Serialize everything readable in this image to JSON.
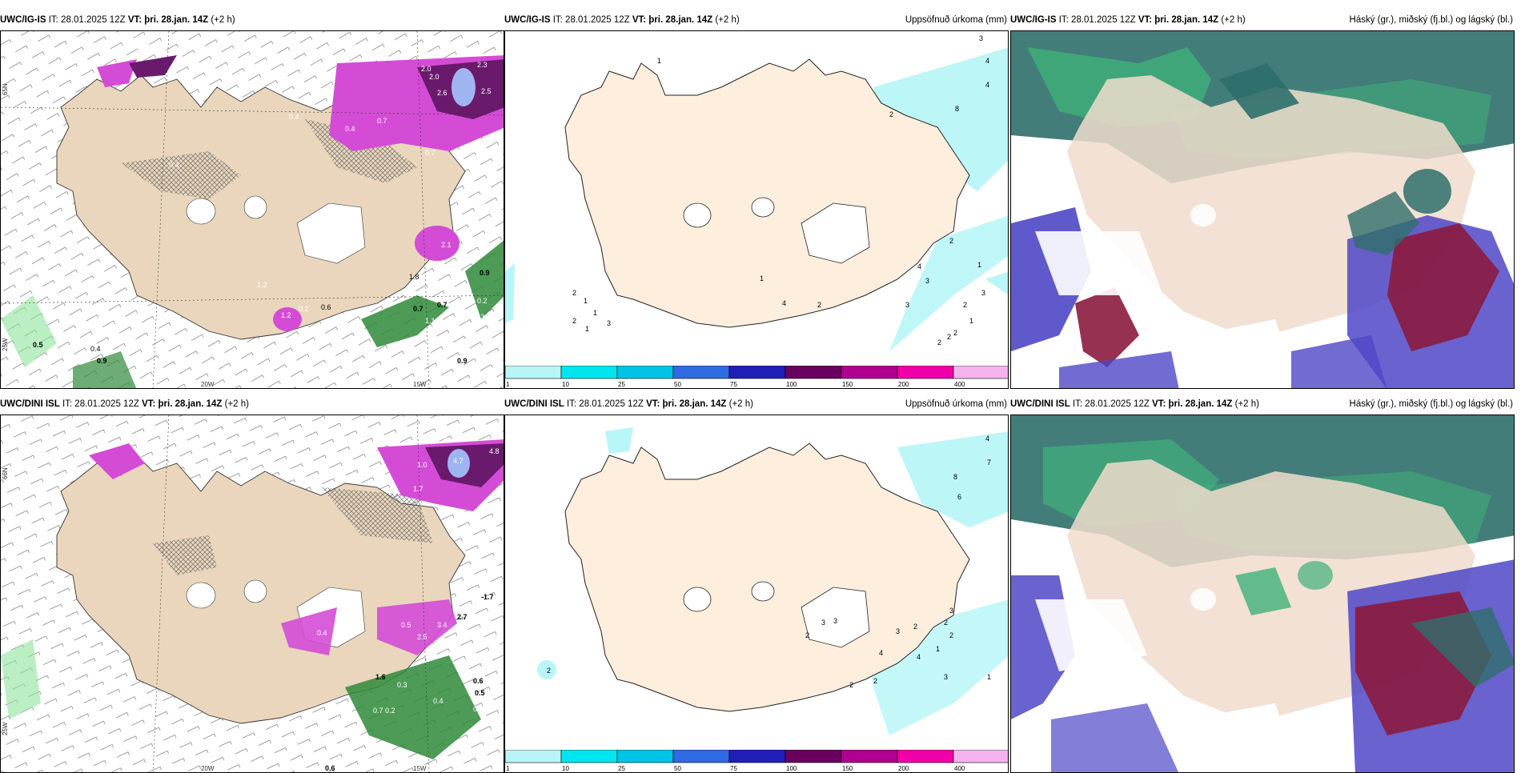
{
  "panels": [
    {
      "id": "top-left",
      "model": "UWC/IG-IS",
      "it_label": "IT:",
      "it_value": "28.01.2025 12Z",
      "vt_label": "VT:",
      "vt_value": "þri. 28.jan. 14Z",
      "offset": "(+2 h)",
      "right_title": "",
      "values": [
        "0.3",
        "0.3",
        "0.4",
        "0.4",
        "0.7",
        "2.0",
        "2.0",
        "2.3",
        "2.6",
        "2.5",
        "0.7",
        "0.4",
        "2.1",
        "1.8",
        "0.9",
        "0.7",
        "0.7",
        "0.2",
        "1.3",
        "1.1",
        "2.4",
        "0.5",
        "0.4",
        "0.9",
        "0.9",
        "1.2",
        "0.6",
        "0.2",
        "1.2"
      ],
      "axes": {
        "lon_left": "20W",
        "lon_right": "15W",
        "lat_top": "65N",
        "lat_bottom": "25W"
      }
    },
    {
      "id": "top-middle",
      "model": "UWC/IG-IS",
      "it_label": "IT:",
      "it_value": "28.01.2025 12Z",
      "vt_label": "VT:",
      "vt_value": "þri. 28.jan. 14Z",
      "offset": "(+2 h)",
      "right_title": "Uppsöfnuð úrkoma (mm)",
      "values": [
        "1",
        "3",
        "4",
        "4",
        "8",
        "2",
        "2",
        "4",
        "3",
        "1",
        "2",
        "3",
        "3",
        "1",
        "1",
        "2",
        "4",
        "2",
        "2",
        "1",
        "1",
        "1",
        "3",
        "1",
        "2",
        "2"
      ]
    },
    {
      "id": "top-right",
      "model": "UWC/IG-IS",
      "it_label": "IT:",
      "it_value": "28.01.2025 12Z",
      "vt_label": "VT:",
      "vt_value": "þri. 28.jan. 14Z",
      "offset": "(+2 h)",
      "right_title": "Háský (gr.), miðský (fj.bl.) og lágský (bl.)"
    },
    {
      "id": "bottom-left",
      "model": "UWC/DINI ISL",
      "it_label": "IT:",
      "it_value": "28.01.2025 12Z",
      "vt_label": "VT:",
      "vt_value": "þri. 28.jan. 14Z",
      "offset": "(+2 h)",
      "right_title": "",
      "values": [
        "2.0",
        "4.7",
        "4.8",
        "1.0",
        "1.7",
        "0.4",
        "0.4",
        "-1.7",
        "2.7",
        "3.4",
        "0.5",
        "2.5",
        "3.1",
        "1.6",
        "0.3",
        "0.6",
        "0.5",
        "0.4",
        "0.7",
        "0.2",
        "0.3",
        "0.6",
        "0.6"
      ],
      "axes": {
        "lon_left": "20W",
        "lon_right": "15W",
        "lat_top": "66N",
        "lat_bottom": "25W"
      }
    },
    {
      "id": "bottom-middle",
      "model": "UWC/DINI ISL",
      "it_label": "IT:",
      "it_value": "28.01.2025 12Z",
      "vt_label": "VT:",
      "vt_value": "þri. 28.jan. 14Z",
      "offset": "(+2 h)",
      "right_title": "Uppsöfnuð úrkoma (mm)",
      "values": [
        "4",
        "7",
        "8",
        "6",
        "3",
        "2",
        "3",
        "3",
        "2",
        "2",
        "3",
        "2",
        "4",
        "1",
        "2",
        "3",
        "1",
        "2",
        "2",
        "2"
      ]
    },
    {
      "id": "bottom-right",
      "model": "UWC/DINI ISL",
      "it_label": "IT:",
      "it_value": "28.01.2025 12Z",
      "vt_label": "VT:",
      "vt_value": "þri. 28.jan. 14Z",
      "offset": "(+2 h)",
      "right_title": "Háský (gr.), miðský (fj.bl.) og lágský (bl.)"
    }
  ],
  "colorbar": {
    "ticks": [
      "1",
      "10",
      "25",
      "50",
      "75",
      "100",
      "150",
      "200",
      "400"
    ],
    "colors": [
      "#b8f5f7",
      "#00e6ee",
      "#00c3e8",
      "#2f6be3",
      "#2020b8",
      "#6a0060",
      "#b0008f",
      "#f000a8",
      "#f5b3ee"
    ]
  },
  "colors": {
    "land": "#f6e8d7",
    "land_dark": "#e6d1b8",
    "precip_light_cyan": "#b8f6f7",
    "magenta": "#d44cd6",
    "dark_purple": "#6a1a6c",
    "green": "#2f8a3a",
    "high_cloud": "#2f6f6a",
    "mid_cloud": "#4f47c7",
    "low_cloud": "#8b1b3e",
    "cloud_green": "#3fb07a"
  }
}
